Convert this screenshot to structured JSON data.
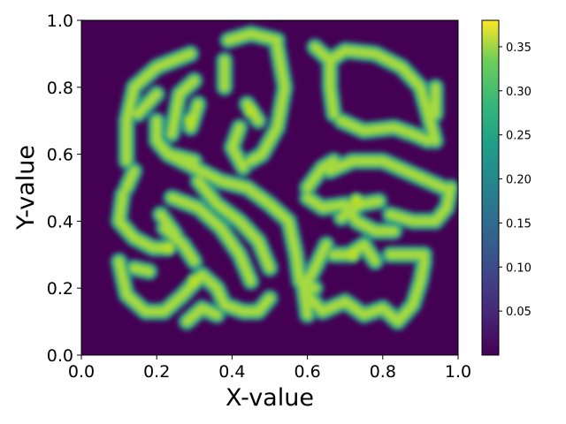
{
  "chart_data": {
    "type": "heatmap",
    "title": "",
    "xlabel": "X-value",
    "ylabel": "Y-value",
    "xlim": [
      0.0,
      1.0
    ],
    "ylim": [
      0.0,
      1.0
    ],
    "x_ticks": [
      "0.0",
      "0.2",
      "0.4",
      "0.6",
      "0.8",
      "1.0"
    ],
    "y_ticks": [
      "0.0",
      "0.2",
      "0.4",
      "0.6",
      "0.8",
      "1.0"
    ],
    "colormap": "viridis",
    "colorbar": {
      "range": [
        0.0,
        0.38
      ],
      "ticks": [
        "0.05",
        "0.10",
        "0.15",
        "0.20",
        "0.25",
        "0.30",
        "0.35"
      ]
    },
    "grid": false,
    "stripe_peak_value": 0.33,
    "stripe_paths": [
      [
        [
          0.12,
          0.58
        ],
        [
          0.12,
          0.7
        ],
        [
          0.14,
          0.8
        ],
        [
          0.2,
          0.86
        ],
        [
          0.29,
          0.9
        ]
      ],
      [
        [
          0.15,
          0.72
        ],
        [
          0.2,
          0.78
        ]
      ],
      [
        [
          0.2,
          0.7
        ],
        [
          0.2,
          0.64
        ],
        [
          0.23,
          0.6
        ],
        [
          0.3,
          0.58
        ]
      ],
      [
        [
          0.24,
          0.66
        ],
        [
          0.26,
          0.78
        ],
        [
          0.3,
          0.82
        ]
      ],
      [
        [
          0.31,
          0.75
        ],
        [
          0.29,
          0.68
        ]
      ],
      [
        [
          0.39,
          0.94
        ],
        [
          0.45,
          0.96
        ],
        [
          0.52,
          0.94
        ]
      ],
      [
        [
          0.38,
          0.8
        ],
        [
          0.38,
          0.88
        ]
      ],
      [
        [
          0.44,
          0.75
        ],
        [
          0.47,
          0.7
        ]
      ],
      [
        [
          0.52,
          0.92
        ],
        [
          0.54,
          0.8
        ],
        [
          0.52,
          0.68
        ],
        [
          0.48,
          0.6
        ],
        [
          0.45,
          0.58
        ]
      ],
      [
        [
          0.42,
          0.68
        ],
        [
          0.4,
          0.62
        ],
        [
          0.43,
          0.56
        ]
      ],
      [
        [
          0.12,
          0.5
        ],
        [
          0.14,
          0.55
        ]
      ],
      [
        [
          0.23,
          0.6
        ],
        [
          0.3,
          0.56
        ],
        [
          0.37,
          0.52
        ],
        [
          0.44,
          0.5
        ],
        [
          0.5,
          0.45
        ],
        [
          0.55,
          0.4
        ],
        [
          0.57,
          0.3
        ],
        [
          0.58,
          0.22
        ],
        [
          0.62,
          0.2
        ]
      ],
      [
        [
          0.24,
          0.47
        ],
        [
          0.31,
          0.44
        ],
        [
          0.37,
          0.38
        ],
        [
          0.42,
          0.3
        ],
        [
          0.45,
          0.22
        ]
      ],
      [
        [
          0.11,
          0.48
        ],
        [
          0.1,
          0.4
        ],
        [
          0.14,
          0.35
        ],
        [
          0.19,
          0.32
        ],
        [
          0.23,
          0.32
        ]
      ],
      [
        [
          0.31,
          0.52
        ],
        [
          0.36,
          0.45
        ],
        [
          0.42,
          0.4
        ],
        [
          0.47,
          0.34
        ],
        [
          0.5,
          0.26
        ]
      ],
      [
        [
          0.22,
          0.38
        ],
        [
          0.27,
          0.33
        ],
        [
          0.3,
          0.28
        ]
      ],
      [
        [
          0.21,
          0.42
        ],
        [
          0.25,
          0.36
        ]
      ],
      [
        [
          0.1,
          0.28
        ],
        [
          0.12,
          0.18
        ],
        [
          0.17,
          0.13
        ],
        [
          0.22,
          0.13
        ],
        [
          0.27,
          0.18
        ],
        [
          0.32,
          0.24
        ],
        [
          0.36,
          0.2
        ],
        [
          0.38,
          0.15
        ],
        [
          0.43,
          0.13
        ],
        [
          0.47,
          0.13
        ],
        [
          0.5,
          0.17
        ]
      ],
      [
        [
          0.28,
          0.1
        ],
        [
          0.32,
          0.14
        ],
        [
          0.36,
          0.12
        ]
      ],
      [
        [
          0.14,
          0.26
        ],
        [
          0.18,
          0.25
        ]
      ],
      [
        [
          0.6,
          0.18
        ],
        [
          0.64,
          0.13
        ],
        [
          0.7,
          0.16
        ],
        [
          0.75,
          0.12
        ],
        [
          0.8,
          0.14
        ],
        [
          0.84,
          0.1
        ],
        [
          0.88,
          0.15
        ],
        [
          0.9,
          0.22
        ],
        [
          0.91,
          0.28
        ]
      ],
      [
        [
          0.6,
          0.12
        ],
        [
          0.59,
          0.2
        ],
        [
          0.62,
          0.26
        ],
        [
          0.65,
          0.33
        ]
      ],
      [
        [
          0.67,
          0.3
        ],
        [
          0.71,
          0.3
        ],
        [
          0.75,
          0.33
        ],
        [
          0.78,
          0.28
        ]
      ],
      [
        [
          0.69,
          0.41
        ],
        [
          0.74,
          0.45
        ],
        [
          0.79,
          0.46
        ]
      ],
      [
        [
          0.66,
          0.55
        ],
        [
          0.72,
          0.58
        ],
        [
          0.8,
          0.58
        ],
        [
          0.86,
          0.55
        ],
        [
          0.92,
          0.52
        ],
        [
          0.96,
          0.5
        ]
      ],
      [
        [
          0.6,
          0.5
        ],
        [
          0.64,
          0.56
        ],
        [
          0.67,
          0.58
        ]
      ],
      [
        [
          0.6,
          0.47
        ],
        [
          0.64,
          0.44
        ],
        [
          0.7,
          0.45
        ],
        [
          0.73,
          0.4
        ],
        [
          0.78,
          0.37
        ],
        [
          0.83,
          0.37
        ]
      ],
      [
        [
          0.82,
          0.42
        ],
        [
          0.88,
          0.4
        ],
        [
          0.94,
          0.4
        ],
        [
          0.97,
          0.44
        ],
        [
          0.98,
          0.5
        ]
      ],
      [
        [
          0.82,
          0.3
        ],
        [
          0.88,
          0.3
        ],
        [
          0.91,
          0.3
        ]
      ],
      [
        [
          0.67,
          0.72
        ],
        [
          0.66,
          0.8
        ],
        [
          0.66,
          0.88
        ],
        [
          0.7,
          0.91
        ],
        [
          0.78,
          0.9
        ],
        [
          0.85,
          0.86
        ],
        [
          0.9,
          0.8
        ],
        [
          0.92,
          0.72
        ],
        [
          0.94,
          0.64
        ]
      ],
      [
        [
          0.62,
          0.92
        ],
        [
          0.66,
          0.88
        ]
      ],
      [
        [
          0.69,
          0.7
        ],
        [
          0.75,
          0.67
        ],
        [
          0.83,
          0.68
        ],
        [
          0.88,
          0.66
        ],
        [
          0.92,
          0.64
        ]
      ],
      [
        [
          0.94,
          0.8
        ],
        [
          0.94,
          0.72
        ]
      ]
    ],
    "stripe_spots": [
      [
        0.29,
        0.7
      ],
      [
        0.45,
        0.73
      ],
      [
        0.3,
        0.22
      ],
      [
        0.72,
        0.3
      ],
      [
        0.23,
        0.32
      ],
      [
        0.73,
        0.46
      ]
    ]
  }
}
